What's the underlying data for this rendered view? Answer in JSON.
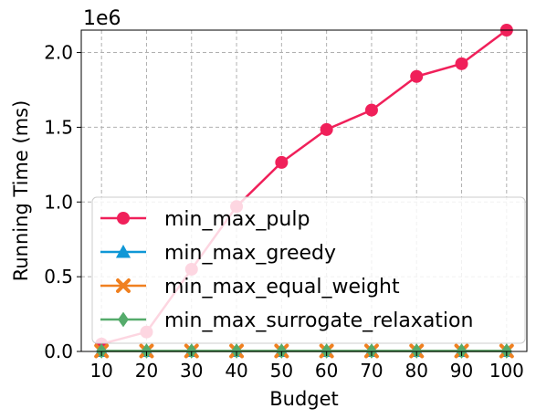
{
  "chart_data": {
    "type": "line",
    "x": [
      10,
      20,
      30,
      40,
      50,
      60,
      70,
      80,
      90,
      100
    ],
    "xlabel": "Budget",
    "ylabel": "Running Time (ms)",
    "y_multiplier_label": "1e6",
    "ylim": [
      0,
      2150000
    ],
    "y_ticks": [
      0,
      500000,
      1000000,
      1500000,
      2000000
    ],
    "y_tick_labels": [
      "0.0",
      "0.5",
      "1.0",
      "1.5",
      "2.0"
    ],
    "x_tick_labels": [
      "10",
      "20",
      "30",
      "40",
      "50",
      "60",
      "70",
      "80",
      "90",
      "100"
    ],
    "grid": true,
    "legend_position": "lower-left",
    "series": [
      {
        "name": "min_max_pulp",
        "color": "#f0205a",
        "marker": "circle",
        "values": [
          50000,
          130000,
          550000,
          970000,
          1265000,
          1485000,
          1615000,
          1840000,
          1925000,
          2150000
        ]
      },
      {
        "name": "min_max_greedy",
        "color": "#0f97d6",
        "marker": "triangle",
        "values": [
          3000,
          3000,
          3000,
          3000,
          3000,
          3000,
          3000,
          3000,
          3000,
          3000
        ]
      },
      {
        "name": "min_max_equal_weight",
        "color": "#f08020",
        "marker": "x",
        "values": [
          3000,
          3000,
          3000,
          3000,
          3000,
          3000,
          3000,
          3000,
          3000,
          3000
        ]
      },
      {
        "name": "min_max_surrogate_relaxation",
        "color": "#55ab6b",
        "marker": "diamond",
        "values": [
          3000,
          3000,
          3000,
          3000,
          3000,
          3000,
          3000,
          3000,
          3000,
          3000
        ]
      }
    ]
  }
}
